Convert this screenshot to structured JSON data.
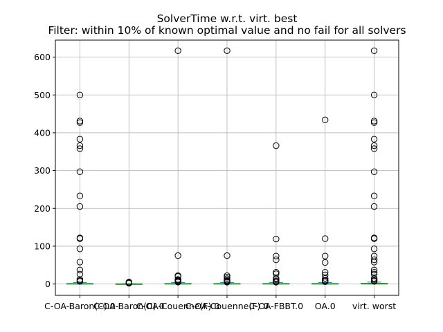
{
  "chart_data": {
    "type": "boxplot",
    "title": "SolverTime w.r.t. virt. best",
    "subtitle": "Filter: within 10% of known optimal value and no fail for all solvers",
    "xlabel": "",
    "ylabel": "",
    "ylim": [
      -30,
      645
    ],
    "yticks": [
      0,
      100,
      200,
      300,
      400,
      500,
      600
    ],
    "grid": true,
    "categories": [
      "C-OA-Baron(C).0",
      "C-OA-Baron(C).0",
      "C-OA-Couenne(F).0",
      "C-OA-Couenne(F).0",
      "C-OA-FBBT.0",
      "OA.0",
      "virt. worst"
    ],
    "series": [
      {
        "box": {
          "q1": 0,
          "median": 0.5,
          "q3": 1.5,
          "whislo": 0,
          "whishi": 4
        },
        "fliers": [
          500,
          431,
          427,
          383,
          366,
          358,
          297,
          233,
          205,
          122,
          120,
          93,
          58,
          37,
          26,
          12,
          9,
          7
        ]
      },
      {
        "box": {
          "q1": 0,
          "median": 0.2,
          "q3": 0.5,
          "whislo": 0,
          "whishi": 1
        },
        "fliers": [
          5,
          4,
          3,
          2
        ]
      },
      {
        "box": {
          "q1": 0,
          "median": 0.5,
          "q3": 1.5,
          "whislo": 0,
          "whishi": 4
        },
        "fliers": [
          617,
          75,
          22,
          20,
          12,
          10,
          8,
          6,
          5
        ]
      },
      {
        "box": {
          "q1": 0,
          "median": 0.5,
          "q3": 1.5,
          "whislo": 0,
          "whishi": 4
        },
        "fliers": [
          617,
          75,
          22,
          18,
          14,
          10,
          8,
          6,
          5
        ]
      },
      {
        "box": {
          "q1": 0,
          "median": 0.5,
          "q3": 1.5,
          "whislo": 0,
          "whishi": 4
        },
        "fliers": [
          366,
          119,
          74,
          64,
          31,
          27,
          15,
          12,
          8,
          6,
          5
        ]
      },
      {
        "box": {
          "q1": 0,
          "median": 0.5,
          "q3": 1.5,
          "whislo": 0,
          "whishi": 4
        },
        "fliers": [
          434,
          120,
          74,
          57,
          31,
          24,
          15,
          10,
          8,
          6
        ]
      },
      {
        "box": {
          "q1": 0,
          "median": 0.5,
          "q3": 2,
          "whislo": 0,
          "whishi": 5
        },
        "fliers": [
          617,
          500,
          431,
          427,
          383,
          366,
          358,
          297,
          233,
          205,
          122,
          120,
          93,
          74,
          64,
          58,
          37,
          31,
          26,
          15,
          12,
          9,
          7
        ]
      }
    ]
  }
}
